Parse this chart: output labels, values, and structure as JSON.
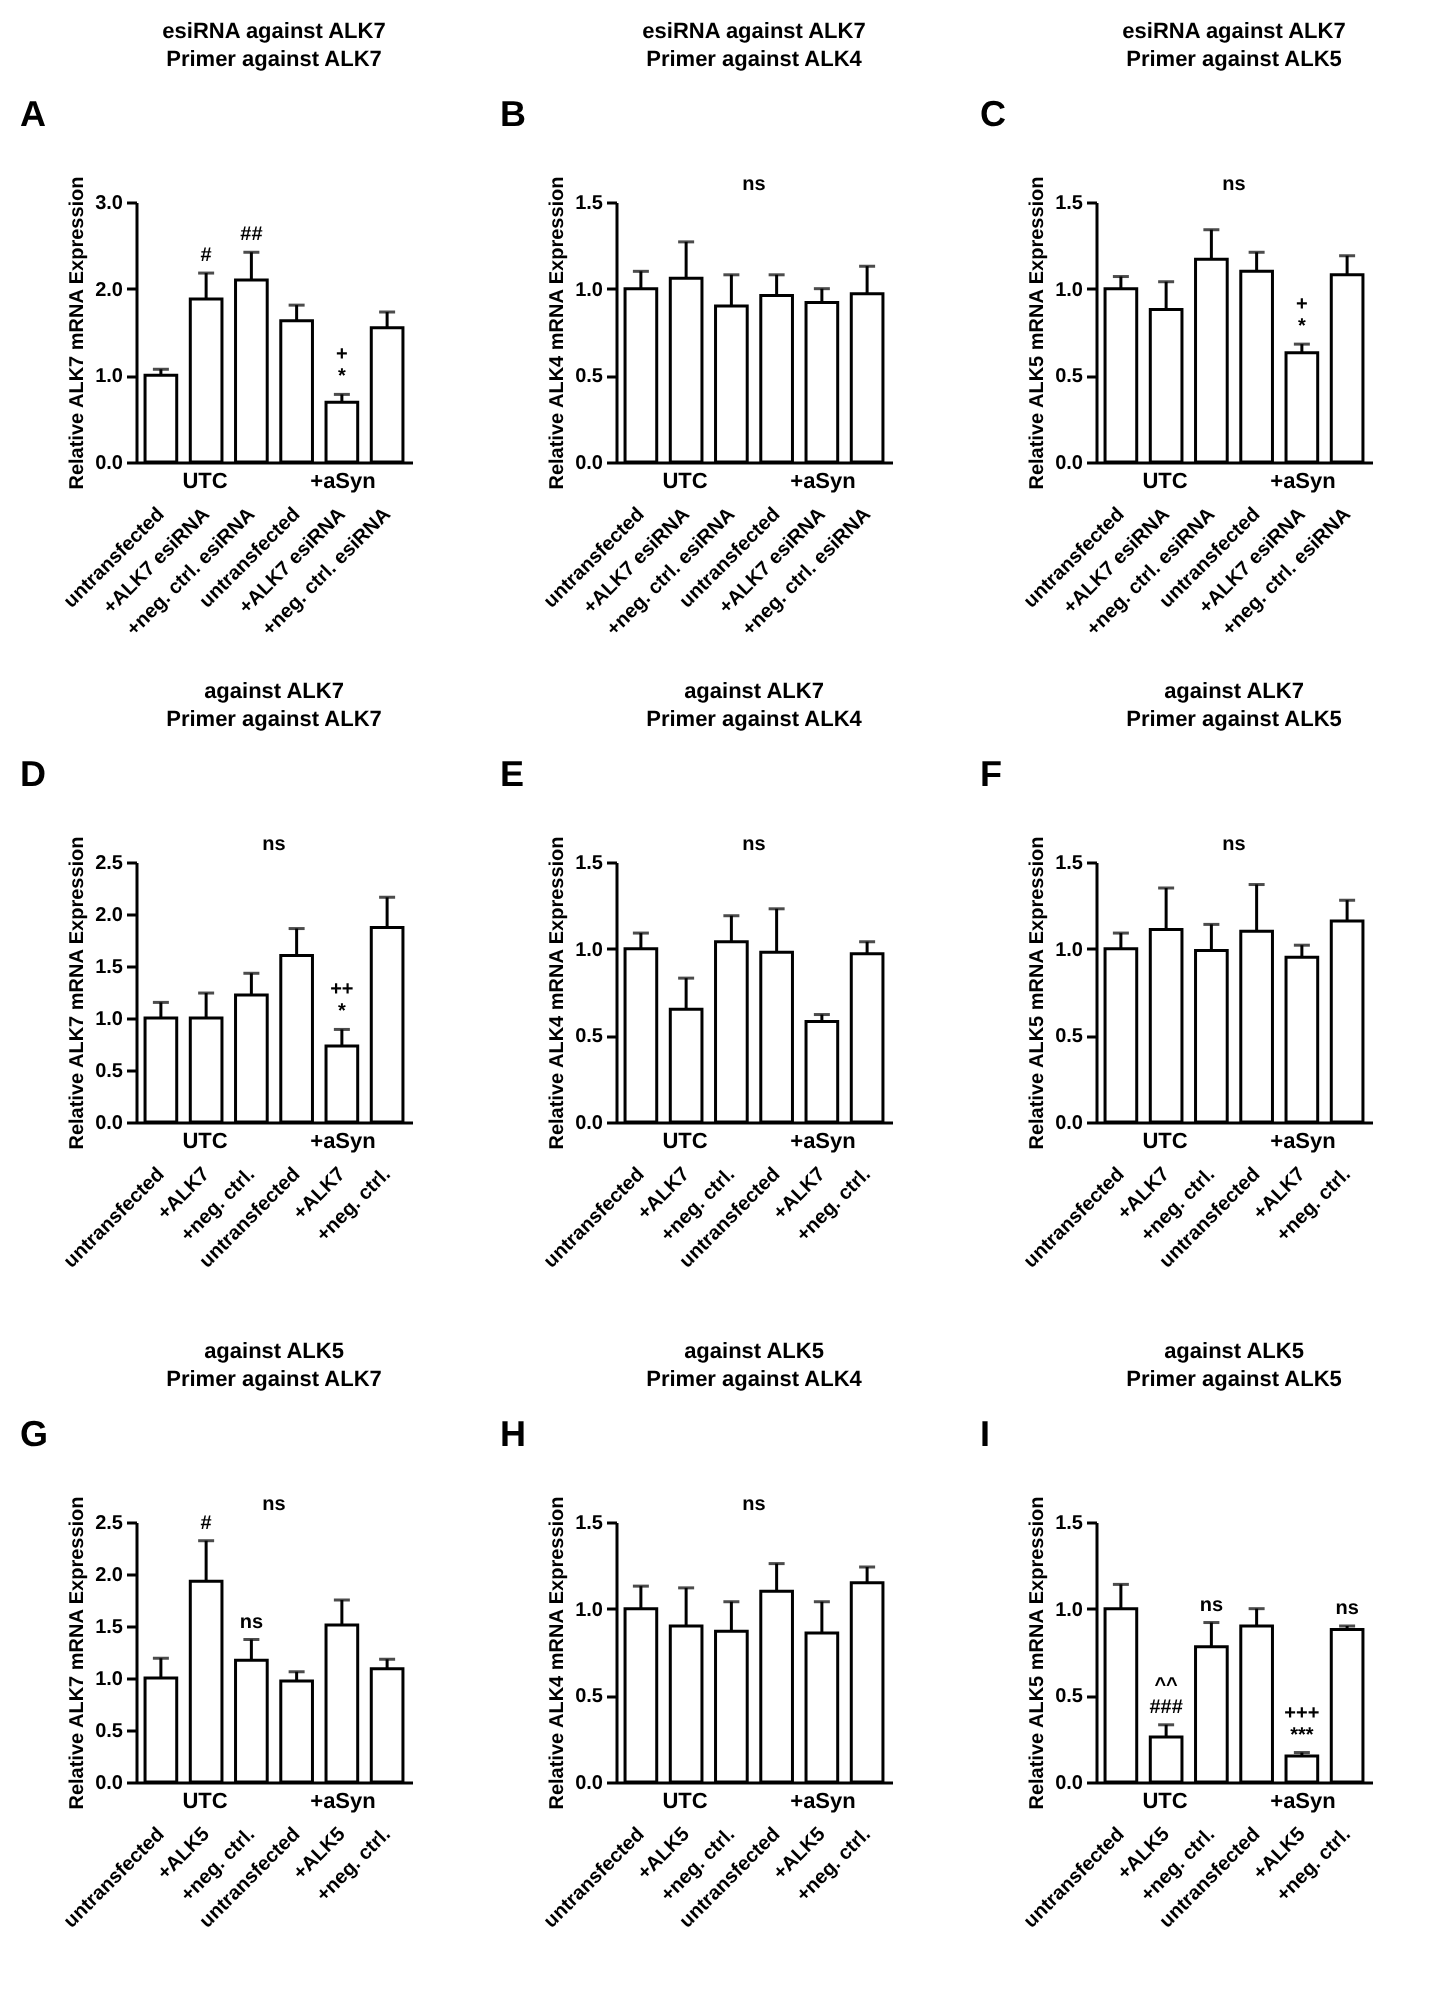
{
  "chart_data": [
    {
      "type": "bar",
      "title": "esiRNA against ALK7",
      "subtitle": "Primer against ALK7",
      "ylabel": "Relative ALK7 mRNA Expression",
      "color": "#ffffff",
      "categories": [
        "untransfected",
        "+ALK7 esiRNA",
        "+neg. ctrl. esiRNA",
        "untransfected",
        "+ALK7 esiRNA",
        "+neg. ctrl. esiRNA"
      ],
      "values": [
        1.0,
        1.88,
        2.1,
        1.63,
        0.69,
        1.55
      ],
      "errors": [
        [
          1.0,
          1.07
        ],
        [
          1.88,
          2.18
        ],
        [
          2.1,
          2.42
        ],
        [
          1.63,
          1.81
        ],
        [
          0.69,
          0.78
        ],
        [
          1.55,
          1.73
        ]
      ],
      "value_labels": [
        null,
        "#",
        "##",
        null,
        "+\n*",
        null
      ],
      "ylim": [
        0,
        3
      ],
      "yticks": [
        {
          "value": 0,
          "label": "0.0"
        },
        {
          "value": 1,
          "label": "1.0"
        },
        {
          "value": 2,
          "label": "2.0"
        },
        {
          "value": 3,
          "label": "3.0"
        }
      ],
      "annotations": [
        "A",
        "UTC",
        "+aSyn"
      ]
    },
    {
      "type": "bar",
      "title": "esiRNA against ALK7",
      "subtitle": "Primer against ALK4",
      "ylabel": "Relative ALK4 mRNA Expression",
      "color": "#ffffff",
      "categories": [
        "untransfected",
        "+ALK7 esiRNA",
        "+neg. ctrl. esiRNA",
        "untransfected",
        "+ALK7 esiRNA",
        "+neg. ctrl. esiRNA"
      ],
      "values": [
        1.0,
        1.06,
        0.9,
        0.96,
        0.92,
        0.97
      ],
      "errors": [
        [
          1.0,
          1.1
        ],
        [
          1.06,
          1.27
        ],
        [
          0.9,
          1.08
        ],
        [
          0.96,
          1.08
        ],
        [
          0.92,
          1.0
        ],
        [
          0.97,
          1.13
        ]
      ],
      "ylim": [
        0,
        1.5
      ],
      "yticks": [
        {
          "value": 0,
          "label": "0.0"
        },
        {
          "value": 0.5,
          "label": "0.5"
        },
        {
          "value": 1,
          "label": "1.0"
        },
        {
          "value": 1.5,
          "label": "1.5"
        }
      ],
      "annotations": [
        "B",
        "UTC",
        "+aSyn",
        "ns"
      ]
    },
    {
      "type": "bar",
      "title": "esiRNA against ALK7",
      "subtitle": "Primer against ALK5",
      "ylabel": "Relative ALK5 mRNA Expression",
      "color": "#ffffff",
      "categories": [
        "untransfected",
        "+ALK7 esiRNA",
        "+neg. ctrl. esiRNA",
        "untransfected",
        "+ALK7 esiRNA",
        "+neg. ctrl. esiRNA"
      ],
      "values": [
        1.0,
        0.88,
        1.17,
        1.1,
        0.63,
        1.08
      ],
      "errors": [
        [
          1.0,
          1.07
        ],
        [
          0.88,
          1.04
        ],
        [
          1.17,
          1.34
        ],
        [
          1.1,
          1.21
        ],
        [
          0.63,
          0.68
        ],
        [
          1.08,
          1.19
        ]
      ],
      "value_labels": [
        null,
        null,
        null,
        null,
        "+\n*",
        null
      ],
      "ylim": [
        0,
        1.5
      ],
      "yticks": [
        {
          "value": 0,
          "label": "0.0"
        },
        {
          "value": 0.5,
          "label": "0.5"
        },
        {
          "value": 1,
          "label": "1.0"
        },
        {
          "value": 1.5,
          "label": "1.5"
        }
      ],
      "annotations": [
        "C",
        "UTC",
        "+aSyn",
        "ns"
      ]
    },
    {
      "type": "bar",
      "title": "against ALK7",
      "subtitle": "Primer against ALK7",
      "ylabel": "Relative ALK7 mRNA Expression",
      "color": "#ffffff",
      "categories": [
        "untransfected",
        "+ALK7",
        "+neg. ctrl.",
        "untransfected",
        "+ALK7",
        "+neg. ctrl."
      ],
      "values": [
        1.0,
        1.0,
        1.22,
        1.6,
        0.73,
        1.87
      ],
      "errors": [
        [
          1.0,
          1.15
        ],
        [
          1.0,
          1.24
        ],
        [
          1.22,
          1.43
        ],
        [
          1.6,
          1.86
        ],
        [
          0.73,
          0.89
        ],
        [
          1.87,
          2.16
        ]
      ],
      "value_labels": [
        null,
        null,
        null,
        null,
        "++\n*",
        null
      ],
      "ylim": [
        0,
        2.5
      ],
      "yticks": [
        {
          "value": 0,
          "label": "0.0"
        },
        {
          "value": 0.5,
          "label": "0.5"
        },
        {
          "value": 1,
          "label": "1.0"
        },
        {
          "value": 1.5,
          "label": "1.5"
        },
        {
          "value": 2,
          "label": "2.0"
        },
        {
          "value": 2.5,
          "label": "2.5"
        }
      ],
      "annotations": [
        "D",
        "UTC",
        "+aSyn",
        "ns"
      ]
    },
    {
      "type": "bar",
      "title": "against ALK7",
      "subtitle": "Primer against ALK4",
      "ylabel": "Relative ALK4 mRNA Expression",
      "color": "#ffffff",
      "categories": [
        "untransfected",
        "+ALK7",
        "+neg. ctrl.",
        "untransfected",
        "+ALK7",
        "+neg. ctrl."
      ],
      "values": [
        1.0,
        0.65,
        1.04,
        0.98,
        0.58,
        0.97
      ],
      "errors": [
        [
          1.0,
          1.09
        ],
        [
          0.65,
          0.83
        ],
        [
          1.04,
          1.19
        ],
        [
          0.98,
          1.23
        ],
        [
          0.58,
          0.62
        ],
        [
          0.97,
          1.04
        ]
      ],
      "ylim": [
        0,
        1.5
      ],
      "yticks": [
        {
          "value": 0,
          "label": "0.0"
        },
        {
          "value": 0.5,
          "label": "0.5"
        },
        {
          "value": 1,
          "label": "1.0"
        },
        {
          "value": 1.5,
          "label": "1.5"
        }
      ],
      "annotations": [
        "E",
        "UTC",
        "+aSyn",
        "ns"
      ]
    },
    {
      "type": "bar",
      "title": "against ALK7",
      "subtitle": "Primer against ALK5",
      "ylabel": "Relative ALK5 mRNA Expression",
      "color": "#ffffff",
      "categories": [
        "untransfected",
        "+ALK7",
        "+neg. ctrl.",
        "untransfected",
        "+ALK7",
        "+neg. ctrl."
      ],
      "values": [
        1.0,
        1.11,
        0.99,
        1.1,
        0.95,
        1.16
      ],
      "errors": [
        [
          1.0,
          1.09
        ],
        [
          1.11,
          1.35
        ],
        [
          0.99,
          1.14
        ],
        [
          1.1,
          1.37
        ],
        [
          0.95,
          1.02
        ],
        [
          1.16,
          1.28
        ]
      ],
      "ylim": [
        0,
        1.5
      ],
      "yticks": [
        {
          "value": 0,
          "label": "0.0"
        },
        {
          "value": 0.5,
          "label": "0.5"
        },
        {
          "value": 1,
          "label": "1.0"
        },
        {
          "value": 1.5,
          "label": "1.5"
        }
      ],
      "annotations": [
        "F",
        "UTC",
        "+aSyn",
        "ns"
      ]
    },
    {
      "type": "bar",
      "title": "against ALK5",
      "subtitle": "Primer against ALK7",
      "ylabel": "Relative ALK7 mRNA Expression",
      "color": "#ffffff",
      "categories": [
        "untransfected",
        "+ALK5",
        "+neg. ctrl.",
        "untransfected",
        "+ALK5",
        "+neg. ctrl."
      ],
      "values": [
        1.0,
        1.93,
        1.17,
        0.97,
        1.51,
        1.09
      ],
      "errors": [
        [
          1.0,
          1.19
        ],
        [
          1.93,
          2.32
        ],
        [
          1.17,
          1.37
        ],
        [
          0.97,
          1.06
        ],
        [
          1.51,
          1.75
        ],
        [
          1.09,
          1.18
        ]
      ],
      "value_labels": [
        null,
        "#",
        "ns",
        null,
        null,
        null
      ],
      "ylim": [
        0,
        2.5
      ],
      "yticks": [
        {
          "value": 0,
          "label": "0.0"
        },
        {
          "value": 0.5,
          "label": "0.5"
        },
        {
          "value": 1,
          "label": "1.0"
        },
        {
          "value": 1.5,
          "label": "1.5"
        },
        {
          "value": 2,
          "label": "2.0"
        },
        {
          "value": 2.5,
          "label": "2.5"
        }
      ],
      "annotations": [
        "G",
        "UTC",
        "+aSyn",
        "ns"
      ]
    },
    {
      "type": "bar",
      "title": "against ALK5",
      "subtitle": "Primer against ALK4",
      "ylabel": "Relative ALK4 mRNA Expression",
      "color": "#ffffff",
      "categories": [
        "untransfected",
        "+ALK5",
        "+neg. ctrl.",
        "untransfected",
        "+ALK5",
        "+neg. ctrl."
      ],
      "values": [
        1.0,
        0.9,
        0.87,
        1.1,
        0.86,
        1.15
      ],
      "errors": [
        [
          1.0,
          1.13
        ],
        [
          0.9,
          1.12
        ],
        [
          0.87,
          1.04
        ],
        [
          1.1,
          1.26
        ],
        [
          0.86,
          1.04
        ],
        [
          1.15,
          1.24
        ]
      ],
      "ylim": [
        0,
        1.5
      ],
      "yticks": [
        {
          "value": 0,
          "label": "0.0"
        },
        {
          "value": 0.5,
          "label": "0.5"
        },
        {
          "value": 1,
          "label": "1.0"
        },
        {
          "value": 1.5,
          "label": "1.5"
        }
      ],
      "annotations": [
        "H",
        "UTC",
        "+aSyn",
        "ns"
      ]
    },
    {
      "type": "bar",
      "title": "against ALK5",
      "subtitle": "Primer against ALK5",
      "ylabel": "Relative ALK5 mRNA Expression",
      "color": "#ffffff",
      "categories": [
        "untransfected",
        "+ALK5",
        "+neg. ctrl.",
        "untransfected",
        "+ALK5",
        "+neg. ctrl."
      ],
      "values": [
        1.0,
        0.26,
        0.78,
        0.9,
        0.15,
        0.88
      ],
      "errors": [
        [
          1.0,
          1.14
        ],
        [
          0.26,
          0.33
        ],
        [
          0.78,
          0.92
        ],
        [
          0.9,
          1.0
        ],
        [
          0.15,
          0.17
        ],
        [
          0.88,
          0.9
        ]
      ],
      "value_labels": [
        null,
        "^^\n###",
        "ns",
        null,
        "+++\n***",
        "ns"
      ],
      "ylim": [
        0,
        1.5
      ],
      "yticks": [
        {
          "value": 0,
          "label": "0.0"
        },
        {
          "value": 0.5,
          "label": "0.5"
        },
        {
          "value": 1,
          "label": "1.0"
        },
        {
          "value": 1.5,
          "label": "1.5"
        }
      ],
      "annotations": [
        "I",
        "UTC",
        "+aSyn"
      ]
    }
  ]
}
